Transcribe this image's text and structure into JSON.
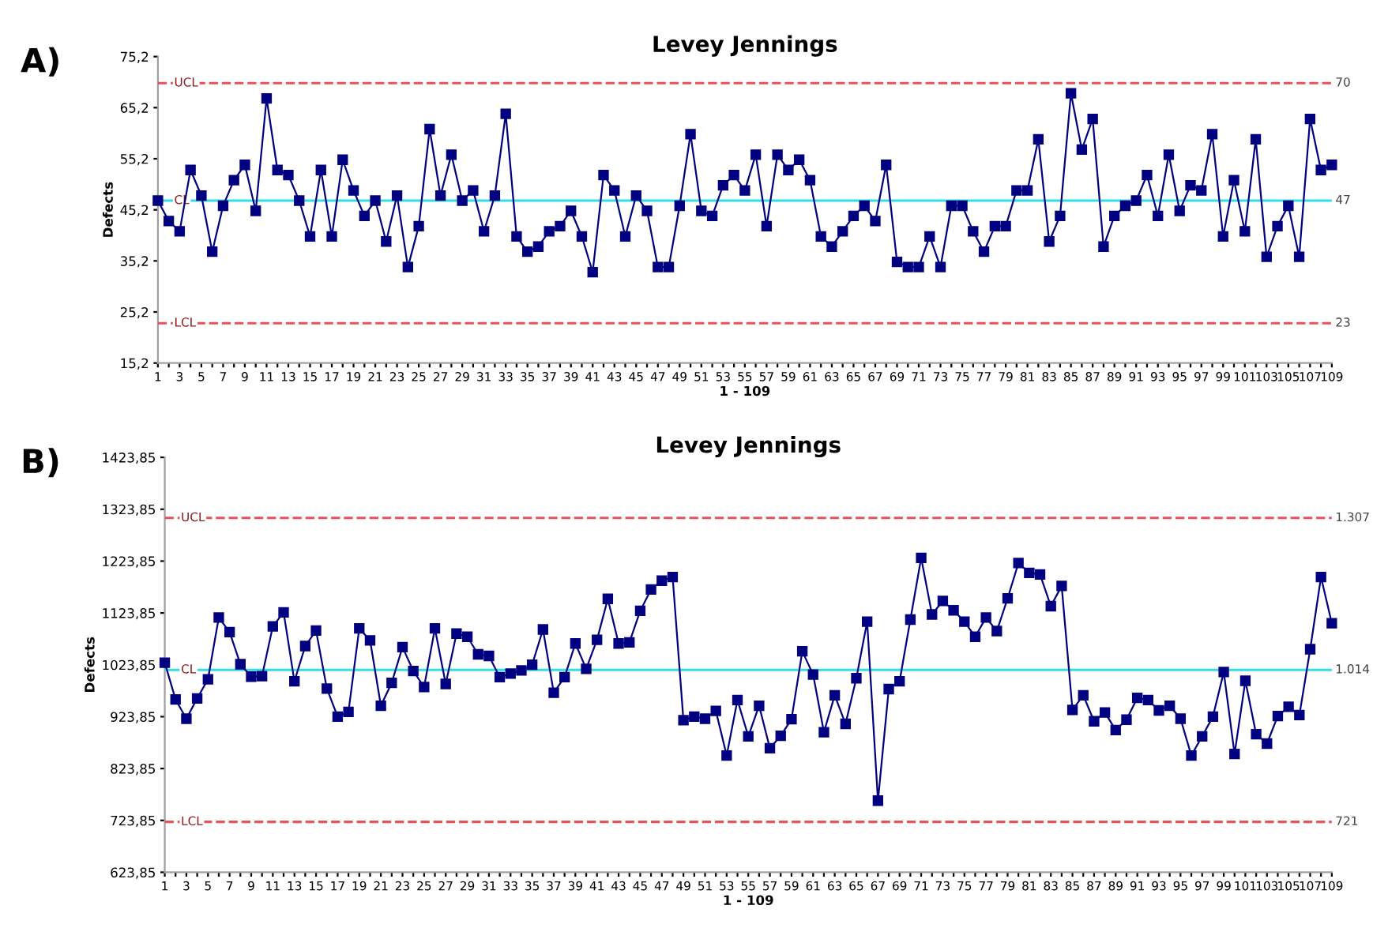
{
  "chart_data": [
    {
      "type": "line",
      "title": "Levey Jennings",
      "xlabel": "1 - 109",
      "ylabel": "Defects",
      "marker": "square",
      "categories": [
        "1",
        null,
        "3",
        null,
        "5",
        null,
        "7",
        null,
        "9",
        null,
        "11",
        null,
        "13",
        null,
        "15",
        null,
        "17",
        null,
        "19",
        null,
        "21",
        null,
        "23",
        null,
        "25",
        null,
        "27",
        null,
        "29",
        null,
        "31",
        null,
        "33",
        null,
        "35",
        null,
        "37",
        null,
        "39",
        null,
        "41",
        null,
        "43",
        null,
        "45",
        null,
        "47",
        null,
        "49",
        null,
        "51",
        null,
        "53",
        null,
        "55",
        null,
        "57",
        null,
        "59",
        null,
        "61",
        null,
        "63",
        null,
        "65",
        null,
        "67",
        null,
        "69",
        null,
        "71",
        null,
        "73",
        null,
        "75",
        null,
        "77",
        null,
        "79",
        null,
        "81",
        null,
        "83",
        null,
        "85",
        null,
        "87",
        null,
        "89",
        null,
        "91",
        null,
        "93",
        null,
        "95",
        null,
        "97",
        null,
        "99",
        null,
        "101",
        null,
        "103",
        null,
        "105",
        null,
        "107",
        null,
        "109"
      ],
      "series": [
        {
          "color": "#000080",
          "values": [
            47,
            43,
            41,
            53,
            48,
            37,
            46,
            51,
            54,
            45,
            67,
            53,
            52,
            47,
            40,
            53,
            40,
            55,
            49,
            44,
            47,
            39,
            48,
            34,
            42,
            61,
            48,
            56,
            47,
            49,
            41,
            48,
            64,
            40,
            37,
            38,
            41,
            42,
            45,
            40,
            33,
            52,
            49,
            40,
            48,
            45,
            34,
            34,
            46,
            60,
            45,
            44,
            50,
            52,
            49,
            56,
            42,
            56,
            53,
            55,
            51,
            40,
            38,
            41,
            44,
            46,
            43,
            54,
            35,
            34,
            34,
            40,
            34,
            46,
            46,
            41,
            37,
            42,
            42,
            49,
            49,
            59,
            39,
            44,
            68,
            57,
            63,
            38,
            44,
            46,
            47,
            52,
            44,
            56,
            45,
            50,
            49,
            60,
            40,
            51,
            41,
            59,
            36,
            42,
            46,
            36,
            63,
            53,
            54
          ]
        }
      ],
      "ylim": [
        15.2,
        75.2
      ],
      "yticks": [
        {
          "value": 15.2,
          "label": "15,2"
        },
        {
          "value": 25.2,
          "label": "25,2"
        },
        {
          "value": 35.2,
          "label": "35,2"
        },
        {
          "value": 45.2,
          "label": "45,2"
        },
        {
          "value": 55.2,
          "label": "55,2"
        },
        {
          "value": 65.2,
          "label": "65,2"
        },
        {
          "value": 75.2,
          "label": "75,2"
        }
      ],
      "ref_lines": [
        {
          "axis": "y",
          "value": 70,
          "label": "UCL",
          "color": "#e8525a",
          "line_style": "dashed"
        },
        {
          "axis": "y",
          "value": 47,
          "label": "CL",
          "color": "#33dde6",
          "line_style": "solid"
        },
        {
          "axis": "y",
          "value": 23,
          "label": "LCL",
          "color": "#e8525a",
          "line_style": "dashed"
        }
      ],
      "annotations": [
        "A)",
        "70",
        "47",
        "23"
      ]
    },
    {
      "type": "line",
      "title": "Levey Jennings",
      "xlabel": "1 - 109",
      "ylabel": "Defects",
      "marker": "square",
      "categories": [
        "1",
        null,
        "3",
        null,
        "5",
        null,
        "7",
        null,
        "9",
        null,
        "11",
        null,
        "13",
        null,
        "15",
        null,
        "17",
        null,
        "19",
        null,
        "21",
        null,
        "23",
        null,
        "25",
        null,
        "27",
        null,
        "29",
        null,
        "31",
        null,
        "33",
        null,
        "35",
        null,
        "37",
        null,
        "39",
        null,
        "41",
        null,
        "43",
        null,
        "45",
        null,
        "47",
        null,
        "49",
        null,
        "51",
        null,
        "53",
        null,
        "55",
        null,
        "57",
        null,
        "59",
        null,
        "61",
        null,
        "63",
        null,
        "65",
        null,
        "67",
        null,
        "69",
        null,
        "71",
        null,
        "73",
        null,
        "75",
        null,
        "77",
        null,
        "79",
        null,
        "81",
        null,
        "83",
        null,
        "85",
        null,
        "87",
        null,
        "89",
        null,
        "91",
        null,
        "93",
        null,
        "95",
        null,
        "97",
        null,
        "99",
        null,
        "101",
        null,
        "103",
        null,
        "105",
        null,
        "107",
        null,
        "109"
      ],
      "series": [
        {
          "color": "#000080",
          "values": [
            1028,
            957,
            920,
            959,
            996,
            1115,
            1087,
            1025,
            1001,
            1002,
            1098,
            1125,
            992,
            1060,
            1090,
            978,
            924,
            933,
            1094,
            1071,
            945,
            989,
            1058,
            1012,
            981,
            1094,
            987,
            1084,
            1078,
            1044,
            1041,
            1000,
            1007,
            1013,
            1024,
            1092,
            970,
            1000,
            1065,
            1016,
            1072,
            1151,
            1065,
            1067,
            1128,
            1169,
            1186,
            1193,
            917,
            924,
            920,
            935,
            849,
            956,
            886,
            945,
            863,
            887,
            919,
            1050,
            1005,
            894,
            965,
            910,
            998,
            1107,
            762,
            977,
            992,
            1111,
            1230,
            1121,
            1147,
            1129,
            1107,
            1078,
            1115,
            1089,
            1152,
            1220,
            1201,
            1198,
            1137,
            1176,
            937,
            965,
            915,
            932,
            898,
            918,
            960,
            956,
            936,
            945,
            920,
            849,
            886,
            924,
            1010,
            852,
            993,
            890,
            872,
            925,
            943,
            927,
            1054,
            1193,
            1104
          ]
        }
      ],
      "ylim": [
        623.85,
        1423.85
      ],
      "yticks": [
        {
          "value": 623.85,
          "label": "623,85"
        },
        {
          "value": 723.85,
          "label": "723,85"
        },
        {
          "value": 823.85,
          "label": "823,85"
        },
        {
          "value": 923.85,
          "label": "923,85"
        },
        {
          "value": 1023.85,
          "label": "1023,85"
        },
        {
          "value": 1123.85,
          "label": "1123,85"
        },
        {
          "value": 1223.85,
          "label": "1223,85"
        },
        {
          "value": 1323.85,
          "label": "1323,85"
        },
        {
          "value": 1423.85,
          "label": "1423,85"
        }
      ],
      "ref_lines": [
        {
          "axis": "y",
          "value": 1307,
          "label": "UCL",
          "color": "#e8525a",
          "line_style": "dashed"
        },
        {
          "axis": "y",
          "value": 1014,
          "label": "CL",
          "color": "#33dde6",
          "line_style": "solid"
        },
        {
          "axis": "y",
          "value": 721,
          "label": "LCL",
          "color": "#e8525a",
          "line_style": "dashed"
        }
      ],
      "annotations": [
        "B)",
        "1.307",
        "1.014",
        "721"
      ]
    }
  ]
}
